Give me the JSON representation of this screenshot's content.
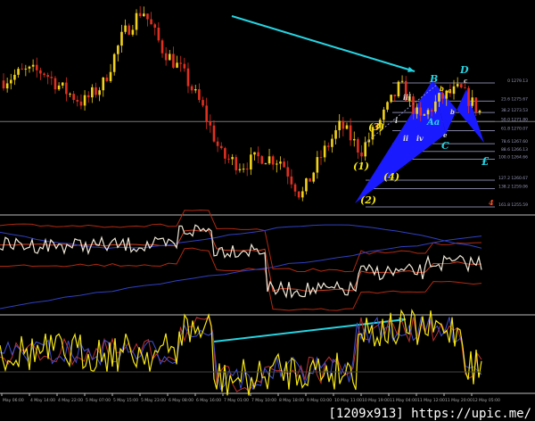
{
  "chart_data": {
    "type": "candlestick",
    "panels": [
      "price",
      "oscillator-with-bands",
      "stochastic"
    ],
    "price_path": [
      1279.6,
      1281.3,
      1281.3,
      1277.9,
      1275.4,
      1278.8,
      1288.1,
      1293.2,
      1285.6,
      1281.3,
      1274.6,
      1265.2,
      1263.5,
      1265.2,
      1264.4,
      1257.6,
      1265.2,
      1271.2,
      1266.1,
      1272.0,
      1278.8,
      1272.0,
      1276.2,
      1277.9,
      1273.7
    ],
    "fib_levels": [
      {
        "label": "0 1279.13",
        "price": 1279.13
      },
      {
        "label": "23.6 1275.67",
        "price": 1275.67
      },
      {
        "label": "38.2 1273.53",
        "price": 1273.53
      },
      {
        "label": "50.0 1271.80",
        "price": 1271.8
      },
      {
        "label": "61.8 1270.07",
        "price": 1270.07
      },
      {
        "label": "78.6 1267.60",
        "price": 1267.6
      },
      {
        "label": "88.6 1266.13",
        "price": 1266.13
      },
      {
        "label": "100.0 1264.66",
        "price": 1264.66
      },
      {
        "label": "127.2 1260.67",
        "price": 1260.67
      },
      {
        "label": "138.2 1259.06",
        "price": 1259.06
      },
      {
        "label": "161.8 1255.59",
        "price": 1255.59
      }
    ],
    "wave_labels": {
      "w1": "(1)",
      "w2": "(2)",
      "w3": "(3)",
      "w4": "(4)",
      "iii": "iii",
      "ii": "ii",
      "iv": "iv",
      "i": "i",
      "B": "B",
      "D": "D",
      "c": "c",
      "b": "b",
      "a": "a",
      "Aa": "Aa",
      "C": "C",
      "e": "e",
      "F": "£",
      "red4": "4"
    },
    "x_ticks": [
      "May 06:00",
      "4 May 14:00",
      "4 May 22:00",
      "5 May 07:00",
      "5 May 15:00",
      "5 May 23:00",
      "6 May 08:00",
      "6 May 16:00",
      "7 May 01:00",
      "7 May 10:00",
      "8 May 18:00",
      "9 May 03:00",
      "10 May 11:00",
      "10 May 19:00",
      "11 May 04:00",
      "11 May 12:00",
      "11 May 20:00",
      "12 May 05:00"
    ],
    "colors": {
      "up": "#f2d21a",
      "down": "#e03020",
      "arrow": "#27d3e0",
      "pattern": "#1a1aff",
      "fib": "#8080a0",
      "osc": "#ffffff",
      "band": "#b02a10",
      "stoch": "#f5e614"
    }
  },
  "watermark": "[1209x913] https://upic.me/"
}
